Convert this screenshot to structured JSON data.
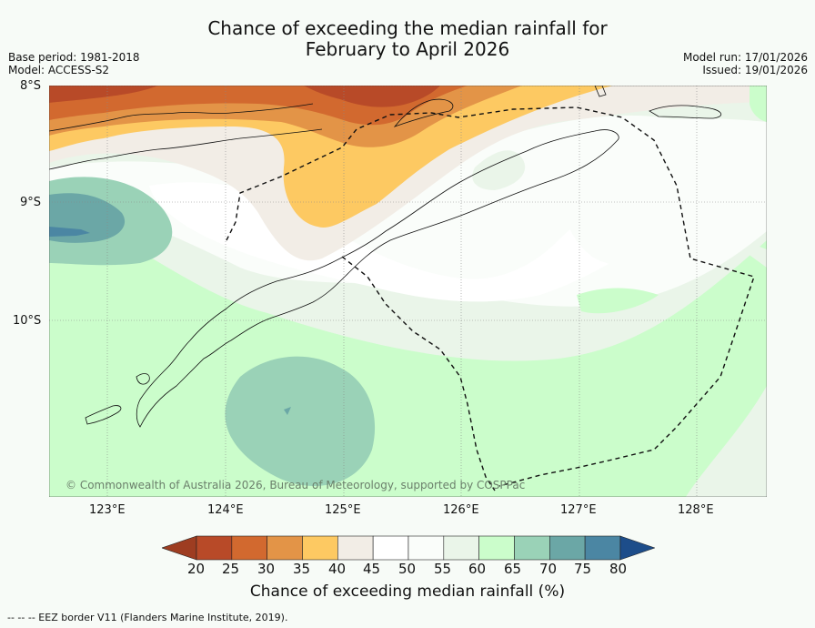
{
  "title": {
    "line1": "Chance of exceeding the median rainfall for",
    "line2": "February to April 2026"
  },
  "meta_left": {
    "base_period": "Base period: 1981-2018",
    "model": "Model: ACCESS-S2"
  },
  "meta_right": {
    "model_run": "Model run: 17/01/2026",
    "issued": "Issued: 19/01/2026"
  },
  "map": {
    "lat_labels": [
      "8°S",
      "9°S",
      "10°S"
    ],
    "lon_labels": [
      "123°E",
      "124°E",
      "125°E",
      "126°E",
      "127°E",
      "128°E"
    ],
    "copyright": "© Commonwealth of Australia 2026, Bureau of Meteorology, supported by COSPPac"
  },
  "colorbar": {
    "ticks": [
      "20",
      "25",
      "30",
      "35",
      "40",
      "45",
      "50",
      "55",
      "60",
      "65",
      "70",
      "75",
      "80"
    ],
    "label": "Chance of exceeding median rainfall (%)",
    "colors": [
      "#9e3d21",
      "#b84a28",
      "#d2692f",
      "#e39447",
      "#fdc962",
      "#f2ede6",
      "#ffffff",
      "#fafdfa",
      "#eaf5e9",
      "#cbfdcb",
      "#9ad2b7",
      "#6ba7a6",
      "#4b86a3",
      "#1d4d8a"
    ]
  },
  "footer": "-- -- -- EEZ border V11 (Flanders Marine Institute, 2019)."
}
